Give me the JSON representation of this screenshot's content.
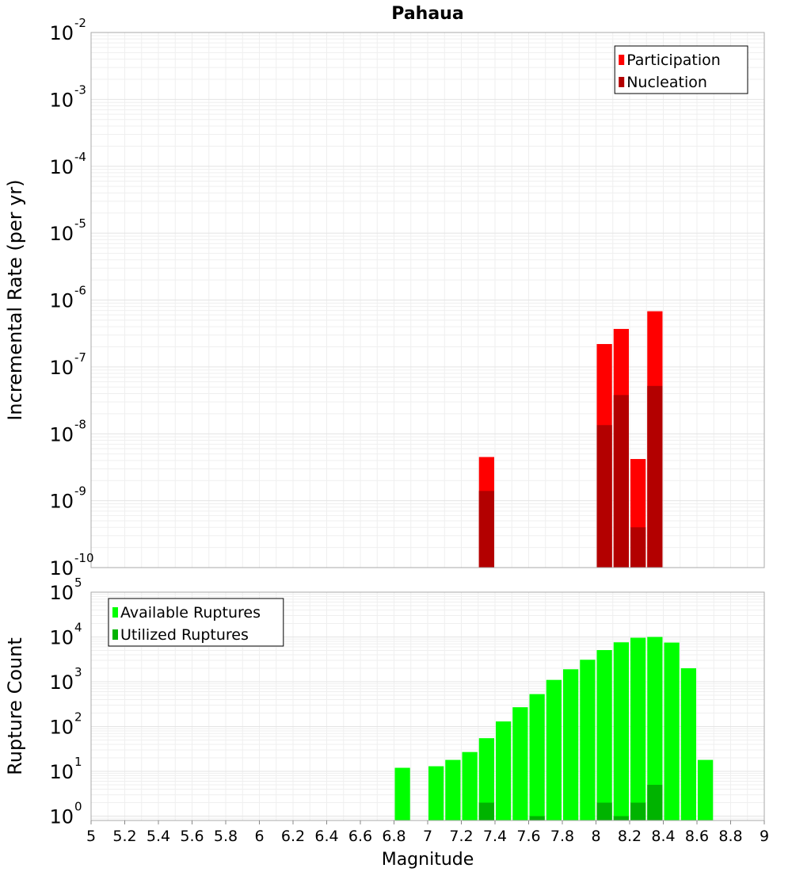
{
  "chart_data": [
    {
      "type": "bar",
      "title": "Pahaua",
      "xlabel": "",
      "ylabel": "Incremental Rate (per yr)",
      "x_scale": "linear",
      "y_scale": "log",
      "xlim": [
        5,
        9
      ],
      "ylim": [
        1e-10,
        0.01
      ],
      "grid": true,
      "legend_position": "top-right",
      "bin_width": 0.1,
      "series": [
        {
          "name": "Participation",
          "color": "#ff0000",
          "points": [
            {
              "x": 7.35,
              "y": 4.5e-09
            },
            {
              "x": 8.05,
              "y": 2.2e-07
            },
            {
              "x": 8.15,
              "y": 3.7e-07
            },
            {
              "x": 8.25,
              "y": 4.2e-09
            },
            {
              "x": 8.35,
              "y": 6.8e-07
            }
          ]
        },
        {
          "name": "Nucleation",
          "color": "#b30000",
          "points": [
            {
              "x": 7.35,
              "y": 1.4e-09
            },
            {
              "x": 8.05,
              "y": 1.35e-08
            },
            {
              "x": 8.15,
              "y": 3.8e-08
            },
            {
              "x": 8.25,
              "y": 4e-10
            },
            {
              "x": 8.35,
              "y": 5.2e-08
            }
          ]
        }
      ]
    },
    {
      "type": "bar",
      "title": "",
      "xlabel": "Magnitude",
      "ylabel": "Rupture Count",
      "x_scale": "linear",
      "y_scale": "log",
      "xlim": [
        5,
        9
      ],
      "ylim": [
        0.8,
        100000
      ],
      "grid": true,
      "legend_position": "top-left",
      "bin_width": 0.1,
      "x_ticks": [
        "5",
        "5.2",
        "5.4",
        "5.6",
        "5.8",
        "6",
        "6.2",
        "6.4",
        "6.6",
        "6.8",
        "7",
        "7.2",
        "7.4",
        "7.6",
        "7.8",
        "8",
        "8.2",
        "8.4",
        "8.6",
        "8.8",
        "9"
      ],
      "series": [
        {
          "name": "Available Ruptures",
          "color": "#00ff00",
          "points": [
            {
              "x": 6.85,
              "y": 12
            },
            {
              "x": 7.05,
              "y": 13
            },
            {
              "x": 7.15,
              "y": 18
            },
            {
              "x": 7.25,
              "y": 27
            },
            {
              "x": 7.35,
              "y": 55
            },
            {
              "x": 7.45,
              "y": 130
            },
            {
              "x": 7.55,
              "y": 270
            },
            {
              "x": 7.65,
              "y": 530
            },
            {
              "x": 7.75,
              "y": 1100
            },
            {
              "x": 7.85,
              "y": 1900
            },
            {
              "x": 7.95,
              "y": 3100
            },
            {
              "x": 8.05,
              "y": 5100
            },
            {
              "x": 8.15,
              "y": 7600
            },
            {
              "x": 8.25,
              "y": 9600
            },
            {
              "x": 8.35,
              "y": 10000
            },
            {
              "x": 8.45,
              "y": 7500
            },
            {
              "x": 8.55,
              "y": 2000
            },
            {
              "x": 8.65,
              "y": 18
            }
          ]
        },
        {
          "name": "Utilized Ruptures",
          "color": "#00b300",
          "points": [
            {
              "x": 7.35,
              "y": 2
            },
            {
              "x": 7.65,
              "y": 1
            },
            {
              "x": 8.05,
              "y": 2
            },
            {
              "x": 8.15,
              "y": 1
            },
            {
              "x": 8.25,
              "y": 2
            },
            {
              "x": 8.35,
              "y": 5
            }
          ]
        }
      ]
    }
  ]
}
